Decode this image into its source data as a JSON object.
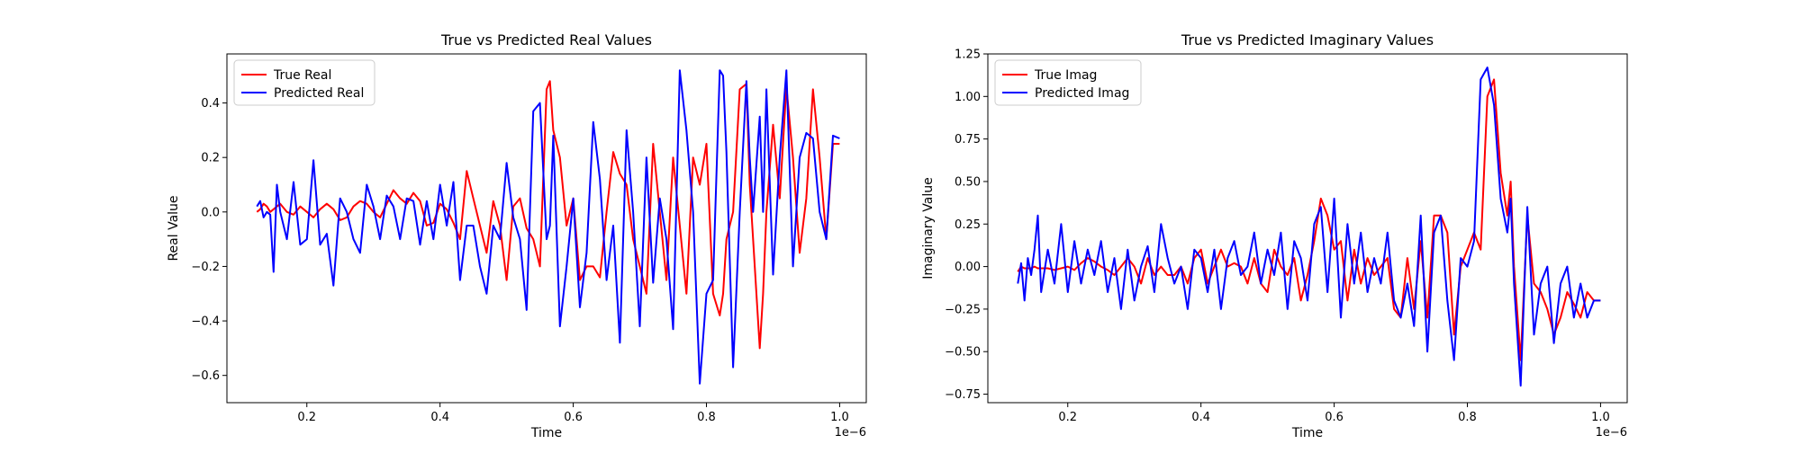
{
  "chart_data": [
    {
      "type": "line",
      "title": "True vs Predicted Real Values",
      "xlabel": "Time",
      "ylabel": "Real Value",
      "x_offset_text": "1e−6",
      "xlim": [
        0.08,
        1.04
      ],
      "ylim": [
        -0.7,
        0.58
      ],
      "xticks": [
        0.2,
        0.4,
        0.6,
        0.8,
        1.0
      ],
      "xtick_labels": [
        "0.2",
        "0.4",
        "0.6",
        "0.8",
        "1.0"
      ],
      "yticks": [
        -0.6,
        -0.4,
        -0.2,
        0.0,
        0.2,
        0.4
      ],
      "ytick_labels": [
        "−0.6",
        "−0.4",
        "−0.2",
        "0.0",
        "0.2",
        "0.4"
      ],
      "legend_position": "upper-left",
      "x": [
        0.125,
        0.13,
        0.135,
        0.14,
        0.145,
        0.15,
        0.155,
        0.16,
        0.17,
        0.18,
        0.19,
        0.2,
        0.21,
        0.22,
        0.23,
        0.24,
        0.25,
        0.26,
        0.27,
        0.28,
        0.29,
        0.3,
        0.31,
        0.32,
        0.33,
        0.34,
        0.35,
        0.36,
        0.37,
        0.38,
        0.39,
        0.4,
        0.41,
        0.42,
        0.43,
        0.44,
        0.45,
        0.46,
        0.47,
        0.48,
        0.49,
        0.5,
        0.51,
        0.52,
        0.53,
        0.54,
        0.55,
        0.56,
        0.565,
        0.57,
        0.58,
        0.59,
        0.6,
        0.61,
        0.62,
        0.63,
        0.64,
        0.65,
        0.66,
        0.67,
        0.68,
        0.69,
        0.7,
        0.71,
        0.72,
        0.73,
        0.74,
        0.75,
        0.76,
        0.77,
        0.78,
        0.79,
        0.8,
        0.81,
        0.82,
        0.825,
        0.83,
        0.84,
        0.85,
        0.86,
        0.865,
        0.87,
        0.88,
        0.885,
        0.89,
        0.9,
        0.91,
        0.92,
        0.93,
        0.94,
        0.95,
        0.96,
        0.97,
        0.98,
        0.99,
        1.0
      ],
      "series": [
        {
          "name": "True Real",
          "color": "#ff0000",
          "values": [
            0.0,
            0.01,
            0.03,
            0.02,
            0.0,
            0.01,
            0.02,
            0.03,
            0.0,
            -0.01,
            0.02,
            0.0,
            -0.02,
            0.01,
            0.03,
            0.01,
            -0.03,
            -0.02,
            0.02,
            0.04,
            0.03,
            0.0,
            -0.02,
            0.03,
            0.08,
            0.05,
            0.03,
            0.07,
            0.04,
            -0.05,
            -0.04,
            0.03,
            0.01,
            -0.04,
            -0.1,
            0.15,
            0.05,
            -0.05,
            -0.15,
            0.04,
            -0.05,
            -0.25,
            0.02,
            0.05,
            -0.06,
            -0.1,
            -0.2,
            0.45,
            0.48,
            0.3,
            0.2,
            -0.05,
            0.05,
            -0.25,
            -0.2,
            -0.2,
            -0.24,
            0.0,
            0.22,
            0.14,
            0.1,
            -0.1,
            -0.2,
            -0.3,
            0.25,
            0.0,
            -0.25,
            0.2,
            -0.05,
            -0.3,
            0.2,
            0.1,
            0.25,
            -0.3,
            -0.38,
            -0.3,
            -0.1,
            0.0,
            0.45,
            0.47,
            0.1,
            -0.1,
            -0.5,
            -0.3,
            0.0,
            0.32,
            0.05,
            0.46,
            0.2,
            -0.15,
            0.05,
            0.45,
            0.2,
            -0.1,
            0.25,
            0.25
          ]
        },
        {
          "name": "Predicted Real",
          "color": "#0000ff",
          "values": [
            0.02,
            0.04,
            -0.02,
            0.0,
            -0.01,
            -0.22,
            0.1,
            0.0,
            -0.1,
            0.11,
            -0.12,
            -0.1,
            0.19,
            -0.12,
            -0.08,
            -0.27,
            0.05,
            0.0,
            -0.1,
            -0.15,
            0.1,
            0.02,
            -0.1,
            0.06,
            0.02,
            -0.1,
            0.05,
            0.04,
            -0.12,
            0.04,
            -0.1,
            0.1,
            -0.05,
            0.11,
            -0.25,
            -0.05,
            -0.05,
            -0.2,
            -0.3,
            -0.05,
            -0.1,
            0.18,
            -0.02,
            -0.1,
            -0.36,
            0.37,
            0.4,
            -0.1,
            -0.05,
            0.28,
            -0.42,
            -0.2,
            0.05,
            -0.35,
            -0.15,
            0.33,
            0.12,
            -0.25,
            -0.05,
            -0.48,
            0.3,
            0.0,
            -0.42,
            0.2,
            -0.26,
            0.05,
            -0.1,
            -0.43,
            0.52,
            0.3,
            0.0,
            -0.63,
            -0.3,
            -0.25,
            0.52,
            0.5,
            0.22,
            -0.57,
            0.0,
            0.48,
            0.2,
            0.0,
            0.35,
            0.0,
            0.45,
            -0.23,
            0.2,
            0.52,
            -0.2,
            0.2,
            0.29,
            0.27,
            0.0,
            -0.1,
            0.28,
            0.27
          ]
        }
      ]
    },
    {
      "type": "line",
      "title": "True vs Predicted Imaginary Values",
      "xlabel": "Time",
      "ylabel": "Imaginary Value",
      "x_offset_text": "1e−6",
      "xlim": [
        0.08,
        1.04
      ],
      "ylim": [
        -0.8,
        1.25
      ],
      "xticks": [
        0.2,
        0.4,
        0.6,
        0.8,
        1.0
      ],
      "xtick_labels": [
        "0.2",
        "0.4",
        "0.6",
        "0.8",
        "1.0"
      ],
      "yticks": [
        -0.75,
        -0.5,
        -0.25,
        0.0,
        0.25,
        0.5,
        0.75,
        1.0,
        1.25
      ],
      "ytick_labels": [
        "−0.75",
        "−0.50",
        "−0.25",
        "0.00",
        "0.25",
        "0.50",
        "0.75",
        "1.00",
        "1.25"
      ],
      "legend_position": "upper-left",
      "x": [
        0.125,
        0.13,
        0.135,
        0.14,
        0.145,
        0.15,
        0.155,
        0.16,
        0.17,
        0.18,
        0.19,
        0.2,
        0.21,
        0.22,
        0.23,
        0.24,
        0.25,
        0.26,
        0.27,
        0.28,
        0.29,
        0.3,
        0.31,
        0.32,
        0.33,
        0.34,
        0.35,
        0.36,
        0.37,
        0.38,
        0.39,
        0.4,
        0.41,
        0.42,
        0.43,
        0.44,
        0.45,
        0.46,
        0.47,
        0.48,
        0.49,
        0.5,
        0.51,
        0.52,
        0.53,
        0.54,
        0.55,
        0.56,
        0.57,
        0.58,
        0.59,
        0.6,
        0.61,
        0.62,
        0.63,
        0.64,
        0.65,
        0.66,
        0.67,
        0.68,
        0.69,
        0.7,
        0.71,
        0.72,
        0.73,
        0.74,
        0.75,
        0.76,
        0.77,
        0.78,
        0.79,
        0.8,
        0.81,
        0.82,
        0.83,
        0.84,
        0.85,
        0.86,
        0.865,
        0.87,
        0.88,
        0.89,
        0.9,
        0.91,
        0.92,
        0.93,
        0.94,
        0.95,
        0.96,
        0.97,
        0.98,
        0.99,
        1.0
      ],
      "series": [
        {
          "name": "True Imag",
          "color": "#ff0000",
          "values": [
            -0.03,
            0.0,
            -0.01,
            -0.01,
            -0.01,
            0.0,
            -0.01,
            -0.01,
            -0.01,
            -0.02,
            -0.01,
            0.0,
            -0.02,
            0.02,
            0.05,
            0.03,
            0.0,
            -0.02,
            -0.05,
            0.0,
            0.05,
            0.0,
            -0.1,
            0.05,
            -0.05,
            0.0,
            -0.05,
            -0.05,
            0.0,
            -0.1,
            0.05,
            0.1,
            -0.1,
            0.0,
            0.1,
            0.0,
            0.02,
            0.0,
            -0.1,
            0.05,
            -0.1,
            -0.15,
            0.1,
            0.0,
            -0.05,
            0.05,
            -0.2,
            -0.05,
            0.15,
            0.4,
            0.3,
            0.1,
            0.15,
            -0.2,
            0.1,
            -0.1,
            0.05,
            -0.05,
            0.0,
            0.05,
            -0.25,
            -0.3,
            0.05,
            -0.25,
            0.15,
            -0.3,
            0.3,
            0.3,
            0.2,
            -0.4,
            0.0,
            0.1,
            0.2,
            0.1,
            1.0,
            1.1,
            0.55,
            0.3,
            0.5,
            0.0,
            -0.55,
            0.3,
            -0.1,
            -0.15,
            -0.25,
            -0.4,
            -0.3,
            -0.15,
            -0.22,
            -0.3,
            -0.15,
            -0.2,
            -0.2
          ]
        },
        {
          "name": "Predicted Imag",
          "color": "#0000ff",
          "values": [
            -0.1,
            0.02,
            -0.2,
            0.05,
            -0.05,
            0.1,
            0.3,
            -0.15,
            0.1,
            -0.1,
            0.25,
            -0.15,
            0.15,
            -0.1,
            0.1,
            -0.05,
            0.15,
            -0.15,
            0.05,
            -0.25,
            0.1,
            -0.2,
            0.0,
            0.12,
            -0.15,
            0.25,
            0.05,
            -0.1,
            0.0,
            -0.25,
            0.1,
            0.05,
            -0.15,
            0.1,
            -0.25,
            0.05,
            0.15,
            -0.05,
            0.0,
            0.2,
            -0.1,
            0.1,
            -0.05,
            0.2,
            -0.25,
            0.15,
            0.05,
            -0.2,
            0.25,
            0.35,
            -0.15,
            0.4,
            -0.3,
            0.25,
            -0.1,
            0.2,
            -0.15,
            0.05,
            -0.1,
            0.2,
            -0.2,
            -0.3,
            -0.1,
            -0.35,
            0.3,
            -0.5,
            0.2,
            0.3,
            -0.2,
            -0.55,
            0.05,
            0.0,
            0.15,
            1.1,
            1.17,
            0.95,
            0.4,
            0.2,
            0.4,
            -0.1,
            -0.7,
            0.35,
            -0.4,
            -0.1,
            0.0,
            -0.45,
            -0.1,
            0.0,
            -0.3,
            -0.1,
            -0.3,
            -0.2,
            -0.2
          ]
        }
      ]
    }
  ]
}
